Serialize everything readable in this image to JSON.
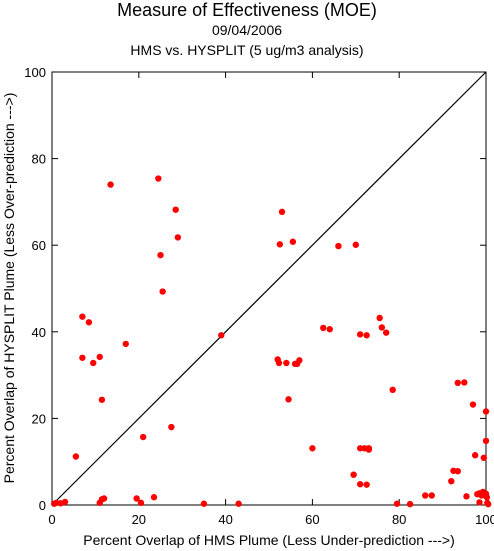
{
  "chart_data": {
    "type": "scatter",
    "title": "Measure of Effectiveness (MOE)",
    "subtitle_date": "09/04/2006",
    "subtitle_comparison": "HMS vs. HYSPLIT  (5 ug/m3 analysis)",
    "xlabel": "Percent Overlap of HMS Plume (Less Under-prediction --->)",
    "ylabel": "Percent Overlap of HYSPLIT Plume (Less Over-prediction --->)",
    "xlim": [
      0,
      100
    ],
    "ylim": [
      0,
      100
    ],
    "xticks": [
      "0",
      "20",
      "40",
      "60",
      "80",
      "100"
    ],
    "yticks": [
      "0",
      "20",
      "40",
      "60",
      "80",
      "100"
    ],
    "reference_line": "diagonal y = x",
    "point_color": "#ff0000",
    "points": [
      [
        0.5,
        0.3
      ],
      [
        1.0,
        0.5
      ],
      [
        2.0,
        0.4
      ],
      [
        3.0,
        0.7
      ],
      [
        5.5,
        11.2
      ],
      [
        7.0,
        43.5
      ],
      [
        7.0,
        34.0
      ],
      [
        8.5,
        42.2
      ],
      [
        9.5,
        32.8
      ],
      [
        11.0,
        34.2
      ],
      [
        11.5,
        24.3
      ],
      [
        11.0,
        0.5
      ],
      [
        11.5,
        1.3
      ],
      [
        12.0,
        1.5
      ],
      [
        13.5,
        74.0
      ],
      [
        17.0,
        37.2
      ],
      [
        19.5,
        1.5
      ],
      [
        20.5,
        0.5
      ],
      [
        21.0,
        15.7
      ],
      [
        23.5,
        1.8
      ],
      [
        24.5,
        75.4
      ],
      [
        25.0,
        57.7
      ],
      [
        25.5,
        49.3
      ],
      [
        27.5,
        18.0
      ],
      [
        28.5,
        68.2
      ],
      [
        29.0,
        61.8
      ],
      [
        35.0,
        0.3
      ],
      [
        39.0,
        39.2
      ],
      [
        43.0,
        0.3
      ],
      [
        52.0,
        33.6
      ],
      [
        52.3,
        32.8
      ],
      [
        52.5,
        60.2
      ],
      [
        53.0,
        67.7
      ],
      [
        54.0,
        32.8
      ],
      [
        54.5,
        24.4
      ],
      [
        55.5,
        60.8
      ],
      [
        56.0,
        32.6
      ],
      [
        56.5,
        32.6
      ],
      [
        57.0,
        33.4
      ],
      [
        60.0,
        13.1
      ],
      [
        62.5,
        40.9
      ],
      [
        64.0,
        40.6
      ],
      [
        66.0,
        59.8
      ],
      [
        69.5,
        7.0
      ],
      [
        70.0,
        60.1
      ],
      [
        71.0,
        4.8
      ],
      [
        71.0,
        13.1
      ],
      [
        71.0,
        39.4
      ],
      [
        72.0,
        13.1
      ],
      [
        72.5,
        4.7
      ],
      [
        72.5,
        39.2
      ],
      [
        73.0,
        13.1
      ],
      [
        73.0,
        12.8
      ],
      [
        75.5,
        43.2
      ],
      [
        76.0,
        41.0
      ],
      [
        77.0,
        39.8
      ],
      [
        78.5,
        26.6
      ],
      [
        79.5,
        0.3
      ],
      [
        82.5,
        0.2
      ],
      [
        86.0,
        2.2
      ],
      [
        87.5,
        2.2
      ],
      [
        92.0,
        5.5
      ],
      [
        92.5,
        7.9
      ],
      [
        93.5,
        7.8
      ],
      [
        93.5,
        28.2
      ],
      [
        95.0,
        28.3
      ],
      [
        95.5,
        2.0
      ],
      [
        97.0,
        23.2
      ],
      [
        97.5,
        11.5
      ],
      [
        98.0,
        2.5
      ],
      [
        98.5,
        2.7
      ],
      [
        98.5,
        0.6
      ],
      [
        99.0,
        2.2
      ],
      [
        99.3,
        3.0
      ],
      [
        99.5,
        10.9
      ],
      [
        99.7,
        2.4
      ],
      [
        100.0,
        21.6
      ],
      [
        100.0,
        14.8
      ],
      [
        100.0,
        2.6
      ],
      [
        100.2,
        1.8
      ],
      [
        100.3,
        0.5
      ],
      [
        100.5,
        0.2
      ]
    ]
  }
}
